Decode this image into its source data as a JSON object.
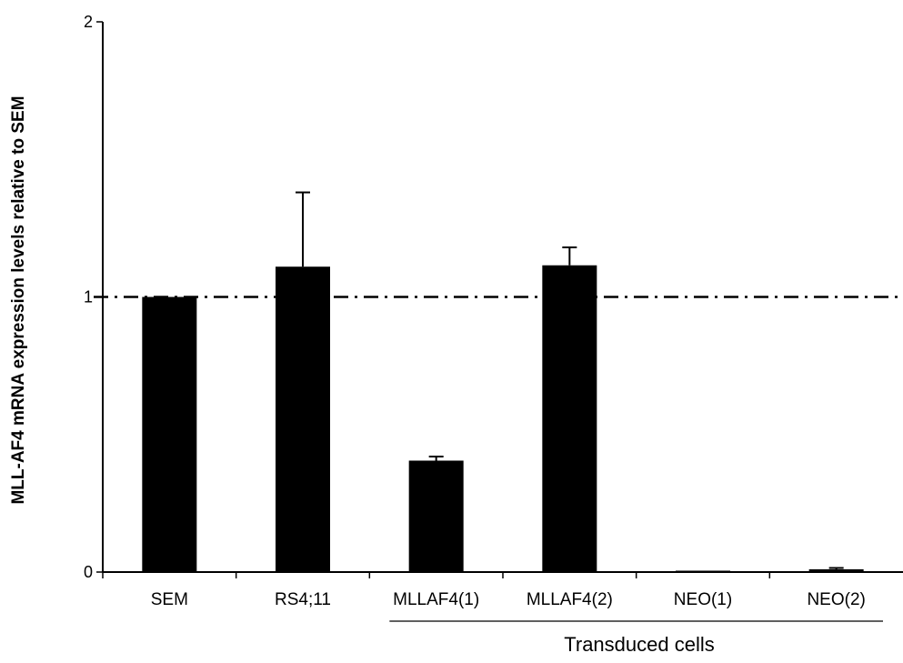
{
  "chart_data": {
    "type": "bar",
    "categories": [
      "SEM",
      "RS4;11",
      "MLLAF4(1)",
      "MLLAF4(2)",
      "NEO(1)",
      "NEO(2)"
    ],
    "values": [
      1.0,
      1.11,
      0.405,
      1.115,
      0.005,
      0.01
    ],
    "error_upper": [
      0.0,
      0.27,
      0.015,
      0.065,
      0.0,
      0.005
    ],
    "ylabel": "MLL-AF4 mRNA expression levels relative to SEM",
    "xlabel": "",
    "ylim": [
      0,
      2
    ],
    "yticks": [
      "0",
      "1",
      "2"
    ],
    "reference_line": 1,
    "group_label": "Transduced cells",
    "grid": false,
    "bar_color": "#000000"
  }
}
